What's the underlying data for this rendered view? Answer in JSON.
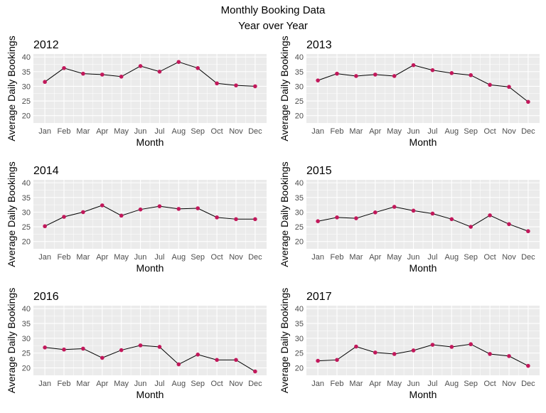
{
  "figure": {
    "title": "Monthly Booking Data",
    "subtitle": "Year over Year"
  },
  "colors": {
    "panel_bg": "#EBEBEB",
    "grid_major": "#FFFFFF",
    "line": "#000000",
    "point": "#C2185B",
    "tick_text": "#4D4D4D",
    "axis_title": "#000000"
  },
  "chart_data": [
    {
      "type": "line",
      "title": "2012",
      "xlabel": "Month",
      "ylabel": "Average Daily Bookings",
      "categories": [
        "Jan",
        "Feb",
        "Mar",
        "Apr",
        "May",
        "Jun",
        "Jul",
        "Aug",
        "Sep",
        "Oct",
        "Nov",
        "Dec"
      ],
      "values": [
        31.5,
        36.2,
        34.3,
        34.0,
        33.3,
        36.9,
        35.0,
        38.3,
        36.2,
        31.0,
        30.3,
        30.0
      ],
      "yticks": [
        20,
        25,
        30,
        35,
        40
      ],
      "ylim": [
        17.5,
        41
      ],
      "grid": true
    },
    {
      "type": "line",
      "title": "2013",
      "xlabel": "Month",
      "ylabel": "Average Daily Bookings",
      "categories": [
        "Jan",
        "Feb",
        "Mar",
        "Apr",
        "May",
        "Jun",
        "Jul",
        "Aug",
        "Sep",
        "Oct",
        "Nov",
        "Dec"
      ],
      "values": [
        32.0,
        34.3,
        33.5,
        34.0,
        33.5,
        37.2,
        35.5,
        34.5,
        33.8,
        30.5,
        29.8,
        24.7
      ],
      "yticks": [
        20,
        25,
        30,
        35,
        40
      ],
      "ylim": [
        17.5,
        41
      ],
      "grid": true
    },
    {
      "type": "line",
      "title": "2014",
      "xlabel": "Month",
      "ylabel": "Average Daily Bookings",
      "categories": [
        "Jan",
        "Feb",
        "Mar",
        "Apr",
        "May",
        "Jun",
        "Jul",
        "Aug",
        "Sep",
        "Oct",
        "Nov",
        "Dec"
      ],
      "values": [
        25.2,
        28.4,
        30.0,
        32.3,
        28.8,
        30.9,
        32.0,
        31.1,
        31.3,
        28.2,
        27.6,
        27.6
      ],
      "yticks": [
        20,
        25,
        30,
        35,
        40
      ],
      "ylim": [
        17.5,
        41
      ],
      "grid": true
    },
    {
      "type": "line",
      "title": "2015",
      "xlabel": "Month",
      "ylabel": "Average Daily Bookings",
      "categories": [
        "Jan",
        "Feb",
        "Mar",
        "Apr",
        "May",
        "Jun",
        "Jul",
        "Aug",
        "Sep",
        "Oct",
        "Nov",
        "Dec"
      ],
      "values": [
        26.9,
        28.2,
        27.9,
        29.9,
        31.8,
        30.5,
        29.5,
        27.6,
        25.0,
        28.9,
        25.9,
        23.5
      ],
      "yticks": [
        20,
        25,
        30,
        35,
        40
      ],
      "ylim": [
        17.5,
        41
      ],
      "grid": true
    },
    {
      "type": "line",
      "title": "2016",
      "xlabel": "Month",
      "ylabel": "Average Daily Bookings",
      "categories": [
        "Jan",
        "Feb",
        "Mar",
        "Apr",
        "May",
        "Jun",
        "Jul",
        "Aug",
        "Sep",
        "Oct",
        "Nov",
        "Dec"
      ],
      "values": [
        26.9,
        26.2,
        26.5,
        23.4,
        26.0,
        27.6,
        27.1,
        21.2,
        24.5,
        22.7,
        22.7,
        18.8
      ],
      "yticks": [
        20,
        25,
        30,
        35,
        40
      ],
      "ylim": [
        17.5,
        41
      ],
      "grid": true
    },
    {
      "type": "line",
      "title": "2017",
      "xlabel": "Month",
      "ylabel": "Average Daily Bookings",
      "categories": [
        "Jan",
        "Feb",
        "Mar",
        "Apr",
        "May",
        "Jun",
        "Jul",
        "Aug",
        "Sep",
        "Oct",
        "Nov",
        "Dec"
      ],
      "values": [
        22.4,
        22.7,
        27.2,
        25.2,
        24.7,
        25.9,
        27.8,
        27.1,
        28.0,
        24.7,
        24.0,
        20.7
      ],
      "yticks": [
        20,
        25,
        30,
        35,
        40
      ],
      "ylim": [
        17.5,
        41
      ],
      "grid": true
    }
  ]
}
